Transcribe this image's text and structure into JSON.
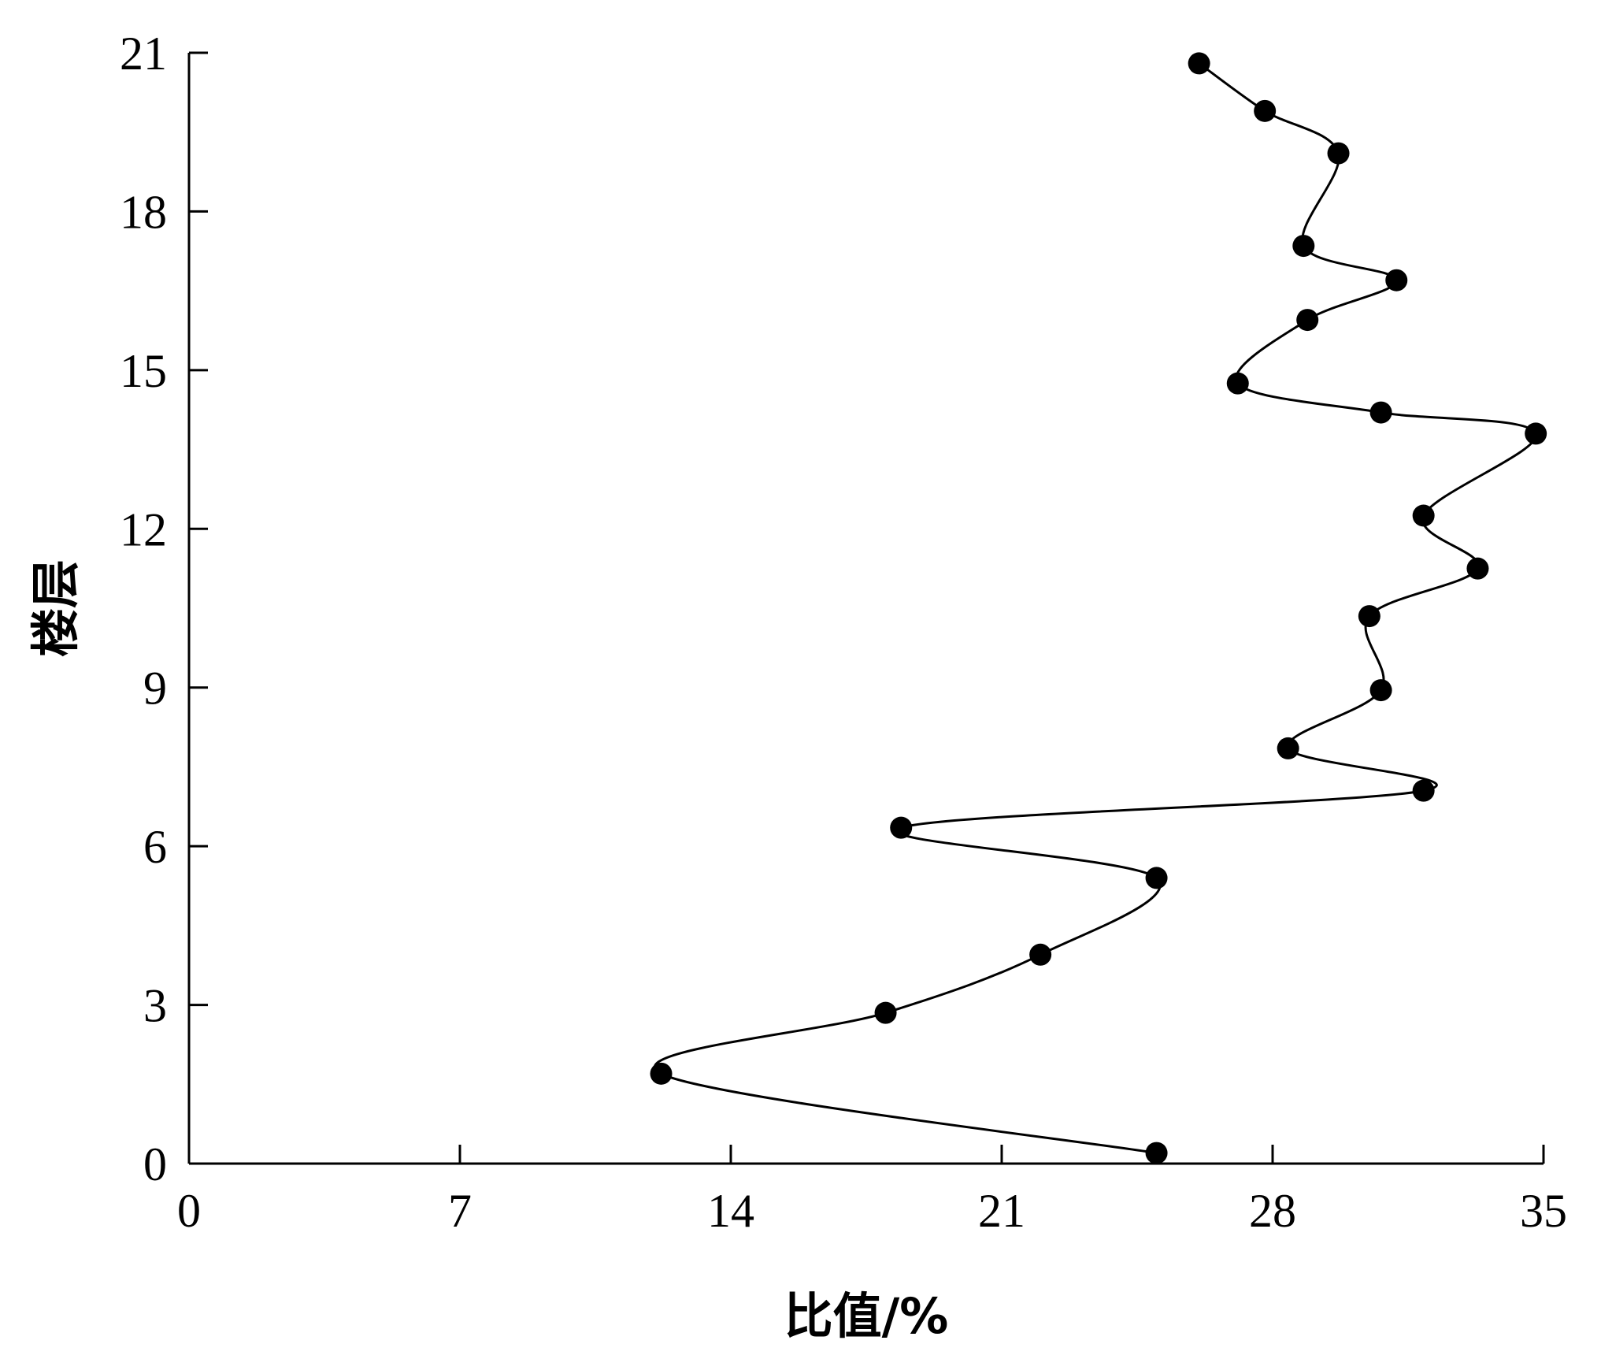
{
  "chart_data": {
    "type": "line",
    "xlabel": "比值/%",
    "ylabel": "楼层",
    "xlim": [
      0,
      35
    ],
    "ylim": [
      0,
      21
    ],
    "xticks": [
      "0",
      "7",
      "14",
      "21",
      "28",
      "35"
    ],
    "yticks": [
      "0",
      "3",
      "6",
      "9",
      "12",
      "15",
      "18",
      "21"
    ],
    "grid": false,
    "smooth": true,
    "series": [
      {
        "points": [
          {
            "x": 25.0,
            "y": 0.2
          },
          {
            "x": 12.2,
            "y": 1.7
          },
          {
            "x": 18.0,
            "y": 2.85
          },
          {
            "x": 22.0,
            "y": 3.95
          },
          {
            "x": 25.0,
            "y": 5.4
          },
          {
            "x": 18.4,
            "y": 6.35
          },
          {
            "x": 31.9,
            "y": 7.05
          },
          {
            "x": 28.4,
            "y": 7.85
          },
          {
            "x": 30.8,
            "y": 8.95
          },
          {
            "x": 30.5,
            "y": 10.35
          },
          {
            "x": 33.3,
            "y": 11.25
          },
          {
            "x": 31.9,
            "y": 12.25
          },
          {
            "x": 34.8,
            "y": 13.8
          },
          {
            "x": 30.8,
            "y": 14.2
          },
          {
            "x": 27.1,
            "y": 14.75
          },
          {
            "x": 28.9,
            "y": 15.95
          },
          {
            "x": 31.2,
            "y": 16.7
          },
          {
            "x": 28.8,
            "y": 17.35
          },
          {
            "x": 29.7,
            "y": 19.1
          },
          {
            "x": 27.8,
            "y": 19.9
          },
          {
            "x": 26.1,
            "y": 20.8
          }
        ]
      }
    ]
  }
}
